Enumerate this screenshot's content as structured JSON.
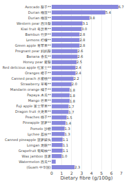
{
  "chart_data": {
    "type": "bar",
    "orientation": "horizontal",
    "xlabel": "Dietary fibre (g/100g)",
    "categories": [
      "Avocado 梨子**",
      "Durian 榴莲**",
      "Durian 榴莲**",
      "Western pear 西洋梨",
      "Kiwi fruit 奇异果**",
      "Bambun 竹笋**",
      "Lemons 柠檬**",
      "Green apple 青苹果**",
      "Pregnant pear 妈妈梨",
      "Banana 香蕉**",
      "Honey pear 蜜梨",
      "Red delicious apple 红富士**",
      "Oranges 橙子**",
      "Canned peach 水蜜桃**",
      "Strawberry 草莓**",
      "Mandarin orange 橘子**",
      "Papaya 木瓜**",
      "Mango 芒果**",
      "Fuji apple 富士苹果**",
      "Dragon fruit 火龙果**",
      "Peaches 桃子**",
      "Pineapple 菠萝**",
      "Pomelo 沙糖",
      "Lychee 荔枝**",
      "Canned pineapple 菠萝罐头",
      "Longan 龙眼**",
      "Grapefruit 葡萄柚**",
      "Wax jamboo 莲雾",
      "Watermelon 西瓜**",
      "(Guam 中华国)"
    ],
    "values": [
      6.7,
      5.4,
      3.8,
      3.1,
      3.0,
      2.8,
      2.8,
      2.8,
      2.6,
      2.6,
      2.5,
      2.4,
      2.4,
      2.2,
      2.0,
      1.8,
      1.8,
      1.8,
      1.7,
      1.7,
      1.5,
      1.4,
      1.3,
      1.3,
      1.1,
      1.1,
      1.1,
      1.0,
      0.4,
      2.3
    ],
    "value_labels": [
      "6.7",
      "5.4",
      "3.8",
      "3.1",
      "3.0",
      "2.8",
      "2.8",
      "2.8",
      "2.6",
      "2.6",
      "2.5",
      "2.4",
      "2.4",
      "2.2",
      "2.0",
      "1.8",
      "1.8",
      "1.8",
      "1.7",
      "1.7",
      "1.5",
      "1.4",
      "1.3",
      "1.3",
      "1.1",
      "1.1",
      "1.1",
      "1.0",
      null,
      "2.3"
    ],
    "data_labels": true,
    "color": "#8888dd",
    "xlim": [
      0,
      7
    ],
    "xticks": [
      0,
      1,
      2,
      3,
      4,
      5,
      6,
      7
    ],
    "grid": true
  }
}
